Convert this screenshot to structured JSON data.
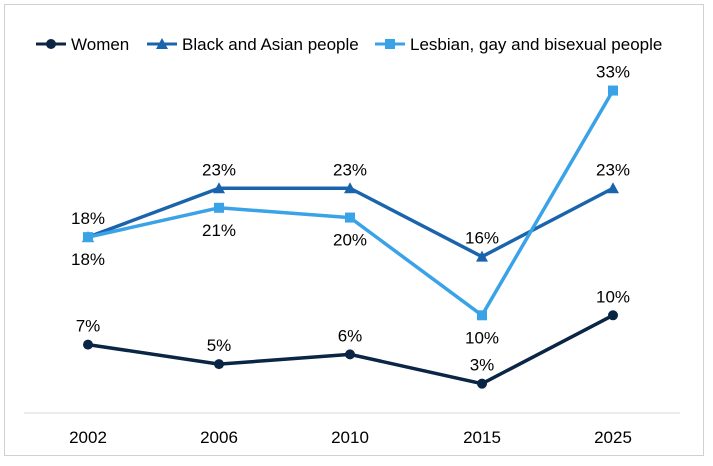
{
  "chart_data": {
    "type": "line",
    "title": "",
    "xlabel": "",
    "ylabel": "",
    "categories": [
      "2002",
      "2006",
      "2010",
      "2015",
      "2025"
    ],
    "ylim": [
      0,
      35
    ],
    "y_axis_visible": false,
    "grid": false,
    "legend_position": "top",
    "series": [
      {
        "name": "Women",
        "values": [
          7,
          5,
          6,
          3,
          10
        ],
        "labels": [
          "7%",
          "5%",
          "6%",
          "3%",
          "10%"
        ],
        "label_positions": [
          "above",
          "above",
          "above",
          "above",
          "above"
        ],
        "color": "#0b2545",
        "marker": "circle"
      },
      {
        "name": "Black and Asian people",
        "values": [
          18,
          23,
          23,
          16,
          23
        ],
        "labels": [
          "18%",
          "23%",
          "23%",
          "16%",
          "23%"
        ],
        "label_positions": [
          "above",
          "above",
          "above",
          "above",
          "above"
        ],
        "color": "#1a64ad",
        "marker": "triangle"
      },
      {
        "name": "Lesbian, gay and bisexual people",
        "values": [
          18,
          21,
          20,
          10,
          33
        ],
        "labels": [
          "18%",
          "21%",
          "20%",
          "10%",
          "33%"
        ],
        "label_positions": [
          "below",
          "below",
          "below",
          "below",
          "above"
        ],
        "color": "#3aa3e8",
        "marker": "square"
      }
    ]
  }
}
